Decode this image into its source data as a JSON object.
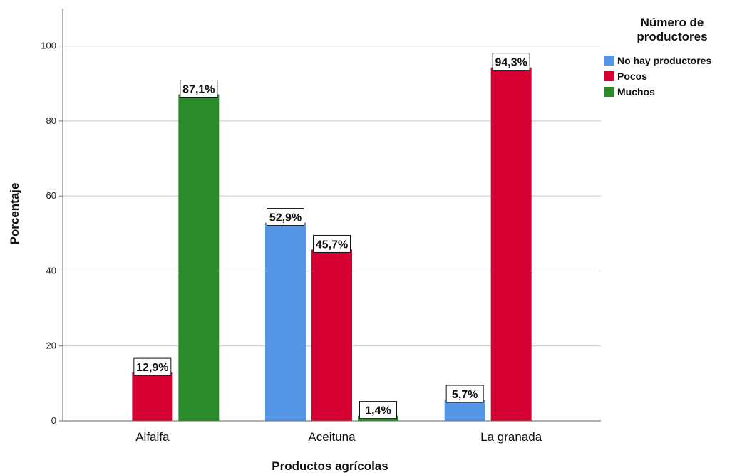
{
  "chart_data": {
    "type": "bar",
    "categories": [
      "Alfalfa",
      "Aceituna",
      "La granada"
    ],
    "series": [
      {
        "name": "No hay productores",
        "color": "#5596e6",
        "values": [
          0,
          52.9,
          5.7
        ],
        "labels": [
          "",
          "52,9%",
          "5,7%"
        ]
      },
      {
        "name": "Pocos",
        "color": "#d60032",
        "values": [
          12.9,
          45.7,
          94.3
        ],
        "labels": [
          "12,9%",
          "45,7%",
          "94,3%"
        ]
      },
      {
        "name": "Muchos",
        "color": "#2b8a2b",
        "values": [
          87.1,
          1.4,
          0
        ],
        "labels": [
          "87,1%",
          "1,4%",
          ""
        ]
      }
    ],
    "xlabel": "Productos agrícolas",
    "ylabel": "Porcentaje",
    "ylim": [
      0,
      110
    ],
    "yticks": [
      0,
      20,
      40,
      60,
      80,
      100
    ],
    "grid": true,
    "legend": {
      "title_line1": "Número de",
      "title_line2": "productores",
      "position": "top-right"
    }
  }
}
